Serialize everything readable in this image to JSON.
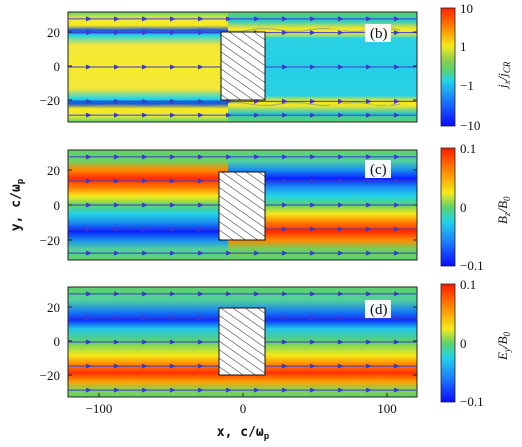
{
  "chart_data": [
    {
      "type": "heatmap",
      "panel_label": "(b)",
      "x_range": [
        -120,
        120
      ],
      "y_range": [
        -32,
        32
      ],
      "y_ticks": [
        20,
        0,
        -20
      ],
      "colorbar": {
        "label": "j_x/j_CR",
        "label_main": "j",
        "label_sub1": "x",
        "label_mid": "/j",
        "label_sub2": "CR",
        "scale": "symlog",
        "ticks": [
          10,
          1,
          -1,
          -10
        ],
        "range": [
          -10,
          10
        ]
      },
      "obstacle": {
        "x": [
          -18,
          18
        ],
        "y": [
          -22,
          22
        ],
        "pattern": "hatched"
      },
      "field_lines_y": [
        28,
        20,
        0,
        -20,
        -28
      ],
      "description_values": {
        "left_upper_band_y": 18,
        "left_lower_band_y": -18,
        "right_upper_band_y": 20,
        "right_lower_band_y": -20
      }
    },
    {
      "type": "heatmap",
      "panel_label": "(c)",
      "x_range": [
        -120,
        120
      ],
      "y_range": [
        -32,
        32
      ],
      "y_ticks": [
        20,
        0,
        -20
      ],
      "colorbar": {
        "label": "B_z/B_0",
        "label_main": "B",
        "label_sub1": "z",
        "label_mid": "/B",
        "label_sub2": "0",
        "scale": "linear",
        "ticks": [
          0.1,
          0,
          -0.1
        ],
        "range": [
          -0.1,
          0.1
        ]
      },
      "obstacle": {
        "x": [
          -18,
          18
        ],
        "y": [
          -22,
          22
        ],
        "pattern": "hatched"
      },
      "field_lines_y": [
        28,
        14,
        0,
        -14,
        -28
      ],
      "description_values": {
        "left_upper_value": 0.1,
        "left_lower_value": -0.1,
        "right_upper_value": -0.1,
        "right_lower_value": 0.1
      }
    },
    {
      "type": "heatmap",
      "panel_label": "(d)",
      "x_range": [
        -120,
        120
      ],
      "y_range": [
        -32,
        32
      ],
      "y_ticks": [
        20,
        0,
        -20
      ],
      "x_ticks": [
        -100,
        0,
        100
      ],
      "colorbar": {
        "label": "E_y/B_0",
        "label_main": "E",
        "label_sub1": "y",
        "label_mid": "/B",
        "label_sub2": "0",
        "scale": "linear",
        "ticks": [
          0.1,
          0,
          -0.1
        ],
        "range": [
          -0.1,
          0.1
        ]
      },
      "obstacle": {
        "x": [
          -18,
          18
        ],
        "y": [
          -22,
          22
        ],
        "pattern": "hatched"
      },
      "field_lines_y": [
        28,
        14,
        0,
        -14,
        -28
      ],
      "description_values": {
        "upper_value": -0.1,
        "lower_value": 0.1
      }
    }
  ],
  "axes": {
    "xlabel_main": "x, c/ω",
    "xlabel_sub": "p",
    "ylabel_main": "y, c/ω",
    "ylabel_sub": "p"
  },
  "colors": {
    "background": "#5fd16a",
    "red": "#ff2a00",
    "orange": "#ff9a00",
    "yellow": "#f5ea1a",
    "cyan": "#22d3e8",
    "blue": "#1040ff",
    "deep_blue": "#0a0aff",
    "field_line": "#3a3ad0"
  }
}
